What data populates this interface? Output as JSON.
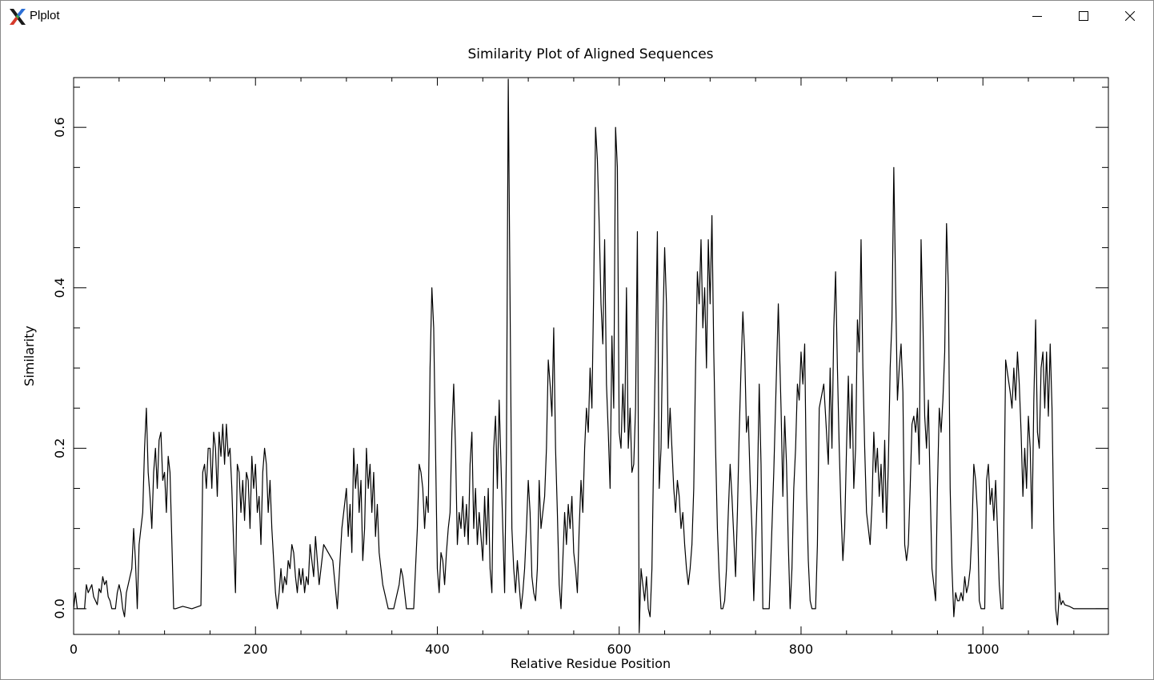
{
  "window": {
    "title": "Plplot",
    "icons": {
      "app": "x11-icon",
      "minimize": "minimize-icon",
      "maximize": "maximize-icon",
      "close": "close-icon"
    }
  },
  "chart_data": {
    "type": "line",
    "title": "Similarity Plot of Aligned Sequences",
    "xlabel": "Relative Residue Position",
    "ylabel": "Similarity",
    "xlim": [
      0,
      1138
    ],
    "ylim": [
      -0.032,
      0.662
    ],
    "x_ticks": [
      0,
      200,
      400,
      600,
      800,
      1000
    ],
    "x_tick_labels": [
      "0",
      "200",
      "400",
      "600",
      "800",
      "1000"
    ],
    "y_ticks": [
      0.0,
      0.2,
      0.4,
      0.6
    ],
    "y_tick_labels": [
      "0.0",
      "0.2",
      "0.4",
      "0.6"
    ],
    "grid": false,
    "line_color": "#000000",
    "series": [
      {
        "x": [
          0,
          2,
          4,
          6,
          10,
          12,
          14,
          16,
          20,
          22,
          24,
          26,
          28,
          30,
          32,
          34,
          36,
          38,
          40,
          42,
          46,
          48,
          50,
          52,
          54,
          56,
          58,
          60,
          62,
          64,
          66,
          68,
          70,
          72,
          74,
          76,
          78,
          80,
          82,
          84,
          86,
          88,
          90,
          92,
          94,
          96,
          98,
          100,
          102,
          104,
          106,
          110,
          112,
          120,
          130,
          140,
          142,
          144,
          146,
          148,
          150,
          152,
          154,
          156,
          158,
          160,
          162,
          164,
          166,
          168,
          170,
          172,
          174,
          176,
          178,
          180,
          182,
          184,
          186,
          188,
          190,
          192,
          194,
          196,
          198,
          200,
          202,
          204,
          206,
          208,
          210,
          212,
          214,
          216,
          218,
          220,
          222,
          224,
          226,
          228,
          230,
          232,
          234,
          236,
          238,
          240,
          242,
          244,
          246,
          248,
          250,
          252,
          254,
          256,
          258,
          260,
          262,
          264,
          266,
          270,
          275,
          280,
          285,
          290,
          295,
          300,
          302,
          304,
          306,
          308,
          310,
          312,
          314,
          316,
          318,
          320,
          322,
          324,
          326,
          328,
          330,
          332,
          334,
          336,
          338,
          340,
          342,
          344,
          346,
          348,
          350,
          352,
          354,
          356,
          358,
          360,
          362,
          364,
          366,
          368,
          370,
          372,
          374,
          376,
          378,
          380,
          382,
          384,
          386,
          388,
          390,
          392,
          394,
          396,
          398,
          400,
          402,
          404,
          406,
          408,
          410,
          412,
          414,
          416,
          418,
          420,
          422,
          424,
          426,
          428,
          430,
          432,
          434,
          436,
          438,
          440,
          442,
          444,
          446,
          448,
          450,
          452,
          454,
          456,
          458,
          460,
          462,
          464,
          466,
          468,
          470,
          472,
          474,
          476,
          478,
          480,
          482,
          484,
          486,
          488,
          490,
          492,
          494,
          496,
          498,
          500,
          502,
          504,
          506,
          508,
          510,
          512,
          514,
          516,
          518,
          520,
          522,
          524,
          526,
          528,
          530,
          532,
          534,
          536,
          538,
          540,
          542,
          544,
          546,
          548,
          550,
          552,
          554,
          556,
          558,
          560,
          562,
          564,
          566,
          568,
          570,
          572,
          574,
          576,
          578,
          580,
          582,
          584,
          586,
          588,
          590,
          592,
          594,
          596,
          598,
          600,
          602,
          604,
          606,
          608,
          610,
          612,
          614,
          616,
          618,
          620,
          622,
          624,
          626,
          628,
          630,
          632,
          634,
          636,
          638,
          640,
          642,
          644,
          646,
          648,
          650,
          652,
          654,
          656,
          658,
          660,
          662,
          664,
          666,
          668,
          670,
          672,
          674,
          676,
          678,
          680,
          682,
          684,
          686,
          688,
          690,
          692,
          694,
          696,
          698,
          700,
          702,
          704,
          706,
          708,
          710,
          712,
          714,
          716,
          718,
          720,
          722,
          724,
          726,
          728,
          730,
          732,
          734,
          736,
          738,
          740,
          742,
          744,
          746,
          748,
          750,
          752,
          754,
          756,
          758,
          760,
          765,
          770,
          775,
          778,
          780,
          782,
          784,
          786,
          788,
          790,
          792,
          794,
          796,
          798,
          800,
          802,
          804,
          806,
          808,
          810,
          812,
          814,
          816,
          818,
          820,
          825,
          830,
          832,
          834,
          836,
          838,
          840,
          842,
          844,
          846,
          848,
          850,
          852,
          854,
          856,
          858,
          860,
          862,
          864,
          866,
          868,
          870,
          872,
          874,
          876,
          878,
          880,
          882,
          884,
          886,
          888,
          890,
          892,
          894,
          896,
          898,
          900,
          902,
          904,
          906,
          908,
          910,
          912,
          914,
          916,
          918,
          920,
          922,
          924,
          926,
          928,
          930,
          932,
          934,
          936,
          938,
          940,
          942,
          944,
          946,
          948,
          950,
          952,
          954,
          956,
          958,
          960,
          962,
          964,
          966,
          968,
          970,
          972,
          974,
          976,
          978,
          980,
          982,
          984,
          986,
          988,
          990,
          992,
          994,
          996,
          998,
          1000,
          1002,
          1004,
          1006,
          1008,
          1010,
          1012,
          1014,
          1016,
          1018,
          1020,
          1022,
          1025,
          1030,
          1032,
          1034,
          1036,
          1038,
          1040,
          1042,
          1044,
          1046,
          1048,
          1050,
          1052,
          1054,
          1056,
          1058,
          1060,
          1062,
          1064,
          1066,
          1068,
          1070,
          1072,
          1074,
          1076,
          1078,
          1080,
          1082,
          1084,
          1086,
          1088,
          1090,
          1095,
          1100,
          1138
        ],
        "y": [
          0,
          0.02,
          0,
          0,
          0,
          0,
          0.03,
          0.02,
          0.03,
          0.015,
          0.01,
          0.005,
          0.025,
          0.02,
          0.04,
          0.03,
          0.035,
          0.015,
          0.01,
          0,
          0,
          0.02,
          0.03,
          0.02,
          0,
          -0.01,
          0.02,
          0.03,
          0.04,
          0.05,
          0.1,
          0.06,
          0,
          0.08,
          0.1,
          0.12,
          0.2,
          0.25,
          0.17,
          0.14,
          0.1,
          0.17,
          0.2,
          0.15,
          0.21,
          0.22,
          0.16,
          0.17,
          0.12,
          0.19,
          0.17,
          0,
          0,
          0.003,
          0,
          0.004,
          0.17,
          0.18,
          0.15,
          0.2,
          0.2,
          0.15,
          0.22,
          0.2,
          0.14,
          0.22,
          0.19,
          0.23,
          0.18,
          0.23,
          0.19,
          0.2,
          0.15,
          0.08,
          0.02,
          0.18,
          0.17,
          0.12,
          0.16,
          0.11,
          0.17,
          0.16,
          0.1,
          0.19,
          0.15,
          0.18,
          0.12,
          0.14,
          0.08,
          0.17,
          0.2,
          0.18,
          0.12,
          0.16,
          0.1,
          0.06,
          0.02,
          0,
          0.02,
          0.05,
          0.02,
          0.04,
          0.03,
          0.06,
          0.05,
          0.08,
          0.07,
          0.04,
          0.02,
          0.05,
          0.03,
          0.05,
          0.02,
          0.04,
          0.03,
          0.08,
          0.06,
          0.04,
          0.09,
          0.03,
          0.08,
          0.07,
          0.06,
          0,
          0.1,
          0.15,
          0.09,
          0.13,
          0.07,
          0.2,
          0.15,
          0.18,
          0.12,
          0.16,
          0.06,
          0.1,
          0.2,
          0.15,
          0.18,
          0.12,
          0.17,
          0.09,
          0.13,
          0.07,
          0.05,
          0.03,
          0.02,
          0.01,
          0,
          0,
          0,
          0,
          0.01,
          0.02,
          0.03,
          0.05,
          0.04,
          0.02,
          0,
          0,
          0,
          0,
          0,
          0.05,
          0.1,
          0.18,
          0.17,
          0.15,
          0.1,
          0.14,
          0.12,
          0.3,
          0.4,
          0.35,
          0.2,
          0.05,
          0.02,
          0.07,
          0.06,
          0.03,
          0.07,
          0.1,
          0.12,
          0.22,
          0.28,
          0.2,
          0.08,
          0.12,
          0.1,
          0.14,
          0.09,
          0.13,
          0.08,
          0.18,
          0.22,
          0.1,
          0.15,
          0.08,
          0.12,
          0.09,
          0.06,
          0.14,
          0.08,
          0.15,
          0.05,
          0.02,
          0.2,
          0.24,
          0.15,
          0.26,
          0.18,
          0.1,
          0.02,
          0.2,
          0.66,
          0.38,
          0.1,
          0.05,
          0.02,
          0.06,
          0.03,
          0,
          0.02,
          0.05,
          0.1,
          0.16,
          0.12,
          0.04,
          0.02,
          0.01,
          0.05,
          0.16,
          0.1,
          0.12,
          0.14,
          0.2,
          0.31,
          0.28,
          0.24,
          0.35,
          0.2,
          0.12,
          0.03,
          0,
          0.06,
          0.12,
          0.08,
          0.13,
          0.1,
          0.14,
          0.07,
          0.05,
          0.02,
          0.1,
          0.16,
          0.12,
          0.2,
          0.25,
          0.22,
          0.3,
          0.25,
          0.4,
          0.6,
          0.56,
          0.48,
          0.38,
          0.33,
          0.46,
          0.28,
          0.22,
          0.15,
          0.34,
          0.25,
          0.6,
          0.55,
          0.22,
          0.2,
          0.28,
          0.22,
          0.4,
          0.2,
          0.25,
          0.17,
          0.18,
          0.25,
          0.47,
          -0.03,
          0.05,
          0.03,
          0.01,
          0.04,
          0,
          -0.01,
          0.05,
          0.2,
          0.33,
          0.47,
          0.15,
          0.2,
          0.35,
          0.45,
          0.38,
          0.2,
          0.25,
          0.2,
          0.15,
          0.12,
          0.16,
          0.14,
          0.1,
          0.12,
          0.08,
          0.05,
          0.03,
          0.05,
          0.08,
          0.15,
          0.3,
          0.42,
          0.38,
          0.46,
          0.35,
          0.4,
          0.3,
          0.46,
          0.38,
          0.49,
          0.32,
          0.2,
          0.1,
          0.04,
          0,
          0,
          0.01,
          0.05,
          0.12,
          0.18,
          0.14,
          0.09,
          0.04,
          0.12,
          0.22,
          0.3,
          0.37,
          0.32,
          0.22,
          0.24,
          0.16,
          0.1,
          0.01,
          0.08,
          0.15,
          0.28,
          0.18,
          0,
          0,
          0,
          0.17,
          0.38,
          0.25,
          0.14,
          0.24,
          0.18,
          0.08,
          0,
          0.05,
          0.15,
          0.2,
          0.28,
          0.26,
          0.32,
          0.28,
          0.33,
          0.15,
          0.06,
          0.01,
          0,
          0,
          0,
          0.08,
          0.25,
          0.28,
          0.18,
          0.3,
          0.2,
          0.35,
          0.42,
          0.3,
          0.2,
          0.12,
          0.06,
          0.1,
          0.2,
          0.29,
          0.2,
          0.28,
          0.15,
          0.2,
          0.36,
          0.32,
          0.46,
          0.3,
          0.2,
          0.12,
          0.1,
          0.08,
          0.13,
          0.22,
          0.17,
          0.2,
          0.14,
          0.18,
          0.12,
          0.21,
          0.1,
          0.18,
          0.3,
          0.36,
          0.55,
          0.4,
          0.26,
          0.3,
          0.33,
          0.27,
          0.08,
          0.06,
          0.08,
          0.15,
          0.23,
          0.24,
          0.22,
          0.25,
          0.18,
          0.46,
          0.36,
          0.24,
          0.2,
          0.26,
          0.15,
          0.05,
          0.03,
          0.01,
          0.15,
          0.25,
          0.22,
          0.26,
          0.32,
          0.48,
          0.4,
          0.15,
          0.05,
          -0.01,
          0.02,
          0.01,
          0.01,
          0.02,
          0.01,
          0.04,
          0.02,
          0.03,
          0.05,
          0.1,
          0.18,
          0.16,
          0.12,
          0.01,
          0,
          0,
          0,
          0.16,
          0.18,
          0.13,
          0.15,
          0.11,
          0.16,
          0.1,
          0.03,
          0,
          0,
          0.31,
          0.27,
          0.25,
          0.3,
          0.26,
          0.32,
          0.28,
          0.22,
          0.14,
          0.2,
          0.15,
          0.24,
          0.2,
          0.1,
          0.26,
          0.36,
          0.22,
          0.2,
          0.3,
          0.32,
          0.25,
          0.32,
          0.24,
          0.33,
          0.25,
          0.1,
          0,
          -0.02,
          0.02,
          0.005,
          0.01,
          0.005,
          0.003,
          0,
          0
        ]
      }
    ]
  }
}
